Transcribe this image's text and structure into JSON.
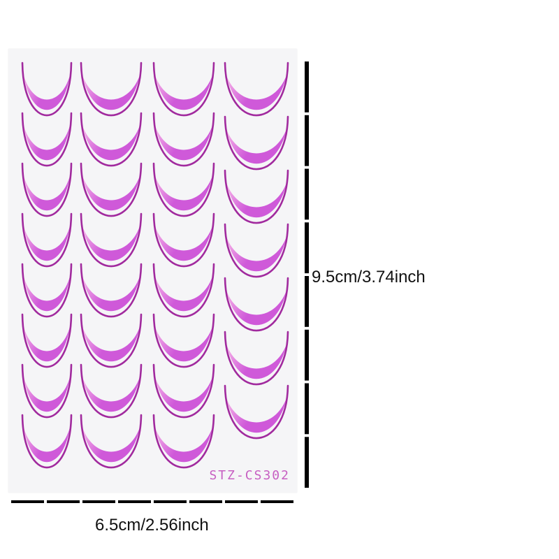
{
  "sticker_sheet": {
    "product_code": "STZ-CS302",
    "colors": {
      "outline": "#a12a9e",
      "fill_dark": "#cf59d9",
      "fill_light": "#f8b6e8",
      "code_text": "#c75fc2"
    },
    "columns": 4,
    "rows_per_column": [
      8,
      8,
      8,
      7
    ]
  },
  "dimensions": {
    "height_label": "9.5cm/3.74inch",
    "width_label": "6.5cm/2.56inch",
    "ruler_color": "#000000",
    "vertical_ruler_segments": 8,
    "horizontal_ruler_segments": 8
  }
}
